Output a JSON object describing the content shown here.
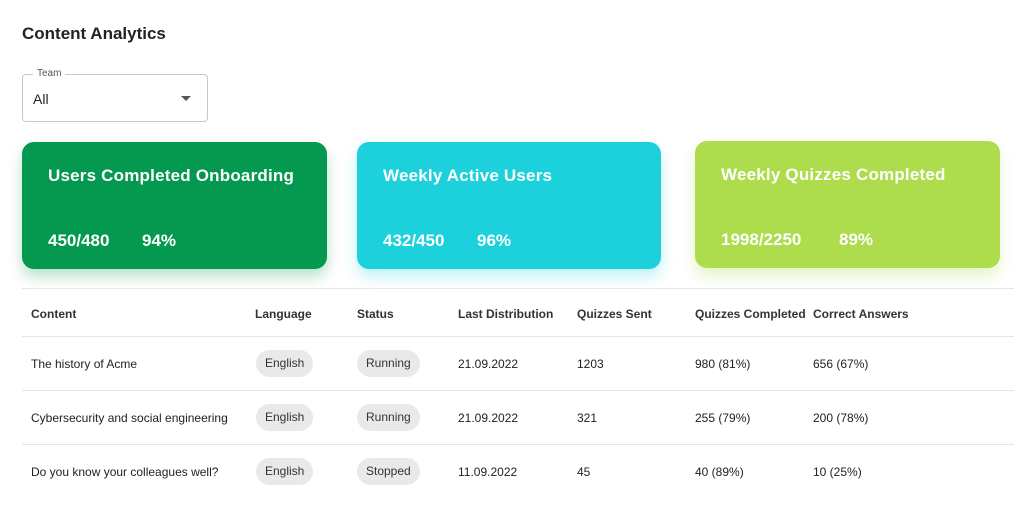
{
  "page": {
    "title": "Content Analytics"
  },
  "filter": {
    "legend": "Team",
    "value": "All"
  },
  "cards": [
    {
      "title": "Users Completed Onboarding",
      "ratio": "450/480",
      "percent": "94%",
      "color": "#04994e"
    },
    {
      "title": "Weekly Active Users",
      "ratio": "432/450",
      "percent": "96%",
      "color": "#1cd1dc"
    },
    {
      "title": "Weekly Quizzes Completed",
      "ratio": "1998/2250",
      "percent": "89%",
      "color": "#addc4c"
    }
  ],
  "table": {
    "columns": [
      "Content",
      "Language",
      "Status",
      "Last Distribution",
      "Quizzes Sent",
      "Quizzes Completed",
      "Correct Answers"
    ],
    "rows": [
      {
        "content": "The history of Acme",
        "language": "English",
        "status": "Running",
        "last_distribution": "21.09.2022",
        "quizzes_sent": "1203",
        "quizzes_completed": "980 (81%)",
        "correct_answers": "656 (67%)"
      },
      {
        "content": "Cybersecurity and social engineering",
        "language": "English",
        "status": "Running",
        "last_distribution": "21.09.2022",
        "quizzes_sent": "321",
        "quizzes_completed": "255 (79%)",
        "correct_answers": "200 (78%)"
      },
      {
        "content": "Do you know your colleagues well?",
        "language": "English",
        "status": "Stopped",
        "last_distribution": "11.09.2022",
        "quizzes_sent": "45",
        "quizzes_completed": "40 (89%)",
        "correct_answers": "10 (25%)"
      }
    ]
  }
}
